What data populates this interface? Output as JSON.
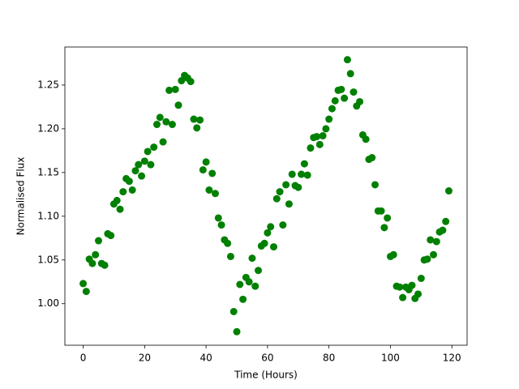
{
  "chart_data": {
    "type": "scatter",
    "x_label": "Time (Hours)",
    "y_label": "Normalised Flux",
    "color": "#008000",
    "x": [
      0,
      1,
      2,
      3,
      4,
      5,
      6,
      7,
      8,
      9,
      10,
      11,
      12,
      13,
      14,
      15,
      16,
      17,
      18,
      19,
      20,
      21,
      22,
      23,
      24,
      25,
      26,
      27,
      28,
      29,
      30,
      31,
      32,
      33,
      34,
      35,
      36,
      37,
      38,
      39,
      40,
      41,
      42,
      43,
      44,
      45,
      46,
      47,
      48,
      49,
      50,
      51,
      52,
      53,
      54,
      55,
      56,
      57,
      58,
      59,
      60,
      61,
      62,
      63,
      64,
      65,
      66,
      67,
      68,
      69,
      70,
      71,
      72,
      73,
      74,
      75,
      76,
      77,
      78,
      79,
      80,
      81,
      82,
      83,
      84,
      85,
      86,
      87,
      88,
      89,
      90,
      91,
      92,
      93,
      94,
      95,
      96,
      97,
      98,
      99,
      100,
      101,
      102,
      103,
      104,
      105,
      106,
      107,
      108,
      109,
      110,
      111,
      112,
      113,
      114,
      115,
      116,
      117,
      118,
      119
    ],
    "values": [
      1.023,
      1.014,
      1.051,
      1.046,
      1.056,
      1.072,
      1.046,
      1.044,
      1.08,
      1.078,
      1.114,
      1.118,
      1.108,
      1.128,
      1.143,
      1.14,
      1.13,
      1.152,
      1.159,
      1.146,
      1.163,
      1.174,
      1.159,
      1.179,
      1.205,
      1.213,
      1.185,
      1.208,
      1.244,
      1.205,
      1.245,
      1.227,
      1.255,
      1.261,
      1.258,
      1.254,
      1.211,
      1.201,
      1.21,
      1.153,
      1.162,
      1.13,
      1.149,
      1.126,
      1.098,
      1.09,
      1.073,
      1.069,
      1.054,
      0.991,
      0.968,
      1.022,
      1.005,
      1.03,
      1.025,
      1.052,
      1.02,
      1.038,
      1.066,
      1.069,
      1.081,
      1.088,
      1.065,
      1.12,
      1.128,
      1.09,
      1.136,
      1.114,
      1.148,
      1.135,
      1.133,
      1.148,
      1.16,
      1.147,
      1.178,
      1.19,
      1.191,
      1.182,
      1.192,
      1.2,
      1.211,
      1.223,
      1.232,
      1.244,
      1.245,
      1.235,
      1.279,
      1.263,
      1.242,
      1.226,
      1.231,
      1.193,
      1.188,
      1.165,
      1.167,
      1.136,
      1.106,
      1.106,
      1.087,
      1.098,
      1.054,
      1.056,
      1.02,
      1.019,
      1.007,
      1.019,
      1.016,
      1.021,
      1.006,
      1.011,
      1.029,
      1.05,
      1.051,
      1.073,
      1.056,
      1.071,
      1.082,
      1.084,
      1.094,
      1.129
    ],
    "xlim": [
      -5.95,
      124.95
    ],
    "ylim": [
      0.9525,
      1.2935
    ],
    "xticks": [
      0,
      20,
      40,
      60,
      80,
      100,
      120
    ],
    "yticks": [
      {
        "value": 1.0,
        "label": "1.00"
      },
      1.05,
      {
        "value": 1.1,
        "label": "1.10"
      },
      1.15,
      {
        "value": 1.2,
        "label": "1.20"
      },
      1.25
    ]
  }
}
